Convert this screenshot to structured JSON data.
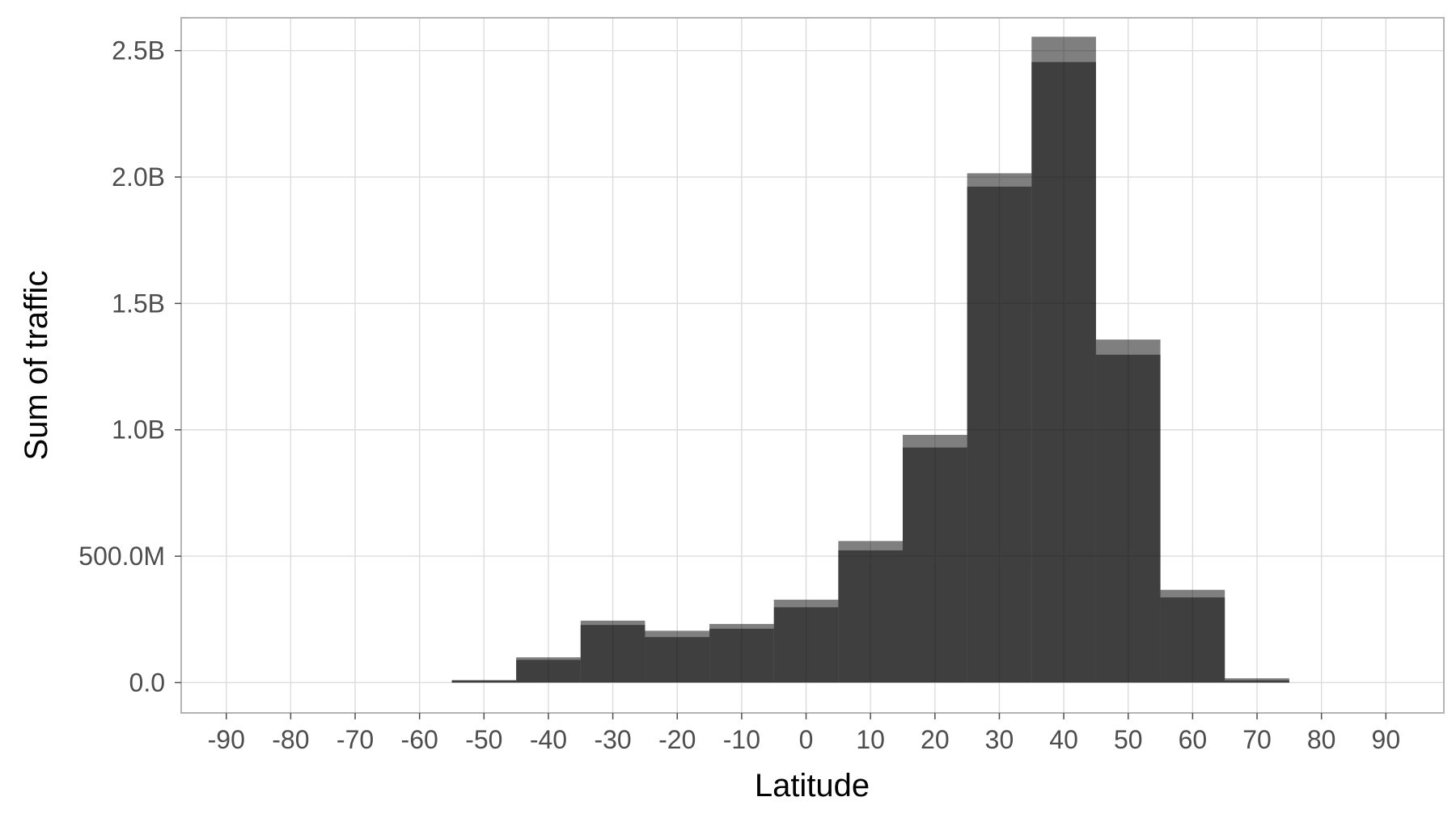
{
  "chart_data": {
    "type": "bar",
    "title": "",
    "xlabel": "Latitude",
    "ylabel": "Sum of traffic",
    "xlim": [
      -97,
      99
    ],
    "ylim": [
      -120000000,
      2630000000
    ],
    "x_ticks": [
      {
        "value": -90,
        "label": "-90"
      },
      {
        "value": -80,
        "label": "-80"
      },
      {
        "value": -70,
        "label": "-70"
      },
      {
        "value": -60,
        "label": "-60"
      },
      {
        "value": -50,
        "label": "-50"
      },
      {
        "value": -40,
        "label": "-40"
      },
      {
        "value": -30,
        "label": "-30"
      },
      {
        "value": -20,
        "label": "-20"
      },
      {
        "value": -10,
        "label": "-10"
      },
      {
        "value": 0,
        "label": "0"
      },
      {
        "value": 10,
        "label": "10"
      },
      {
        "value": 20,
        "label": "20"
      },
      {
        "value": 30,
        "label": "30"
      },
      {
        "value": 40,
        "label": "40"
      },
      {
        "value": 50,
        "label": "50"
      },
      {
        "value": 60,
        "label": "60"
      },
      {
        "value": 70,
        "label": "70"
      },
      {
        "value": 80,
        "label": "80"
      },
      {
        "value": 90,
        "label": "90"
      }
    ],
    "y_ticks": [
      {
        "value": 0,
        "label": "0.0"
      },
      {
        "value": 500000000,
        "label": "500.0M"
      },
      {
        "value": 1000000000,
        "label": "1.0B"
      },
      {
        "value": 1500000000,
        "label": "1.5B"
      },
      {
        "value": 2000000000,
        "label": "2.0B"
      },
      {
        "value": 2500000000,
        "label": "2.5B"
      }
    ],
    "grid": true,
    "bin_width": 10,
    "bin_centers": [
      -50,
      -40,
      -30,
      -20,
      -10,
      0,
      10,
      20,
      30,
      40,
      50,
      60,
      70
    ],
    "series": [
      {
        "values": [
          8000000,
          90000000,
          228000000,
          180000000,
          213000000,
          298000000,
          523000000,
          930000000,
          1962000000,
          2455000000,
          1297000000,
          337000000,
          9000000
        ]
      },
      {
        "values": [
          10000000,
          100000000,
          245000000,
          205000000,
          232000000,
          328000000,
          560000000,
          980000000,
          2015000000,
          2555000000,
          1357000000,
          367000000,
          17000000
        ]
      }
    ],
    "colors": {
      "bar_fill": "#000000",
      "bar_opacity": 0.5,
      "grid": "#dcdcdc",
      "panel_border": "#b3b3b3",
      "tick_text": "#4d4d4d",
      "title_text": "#000000"
    }
  }
}
